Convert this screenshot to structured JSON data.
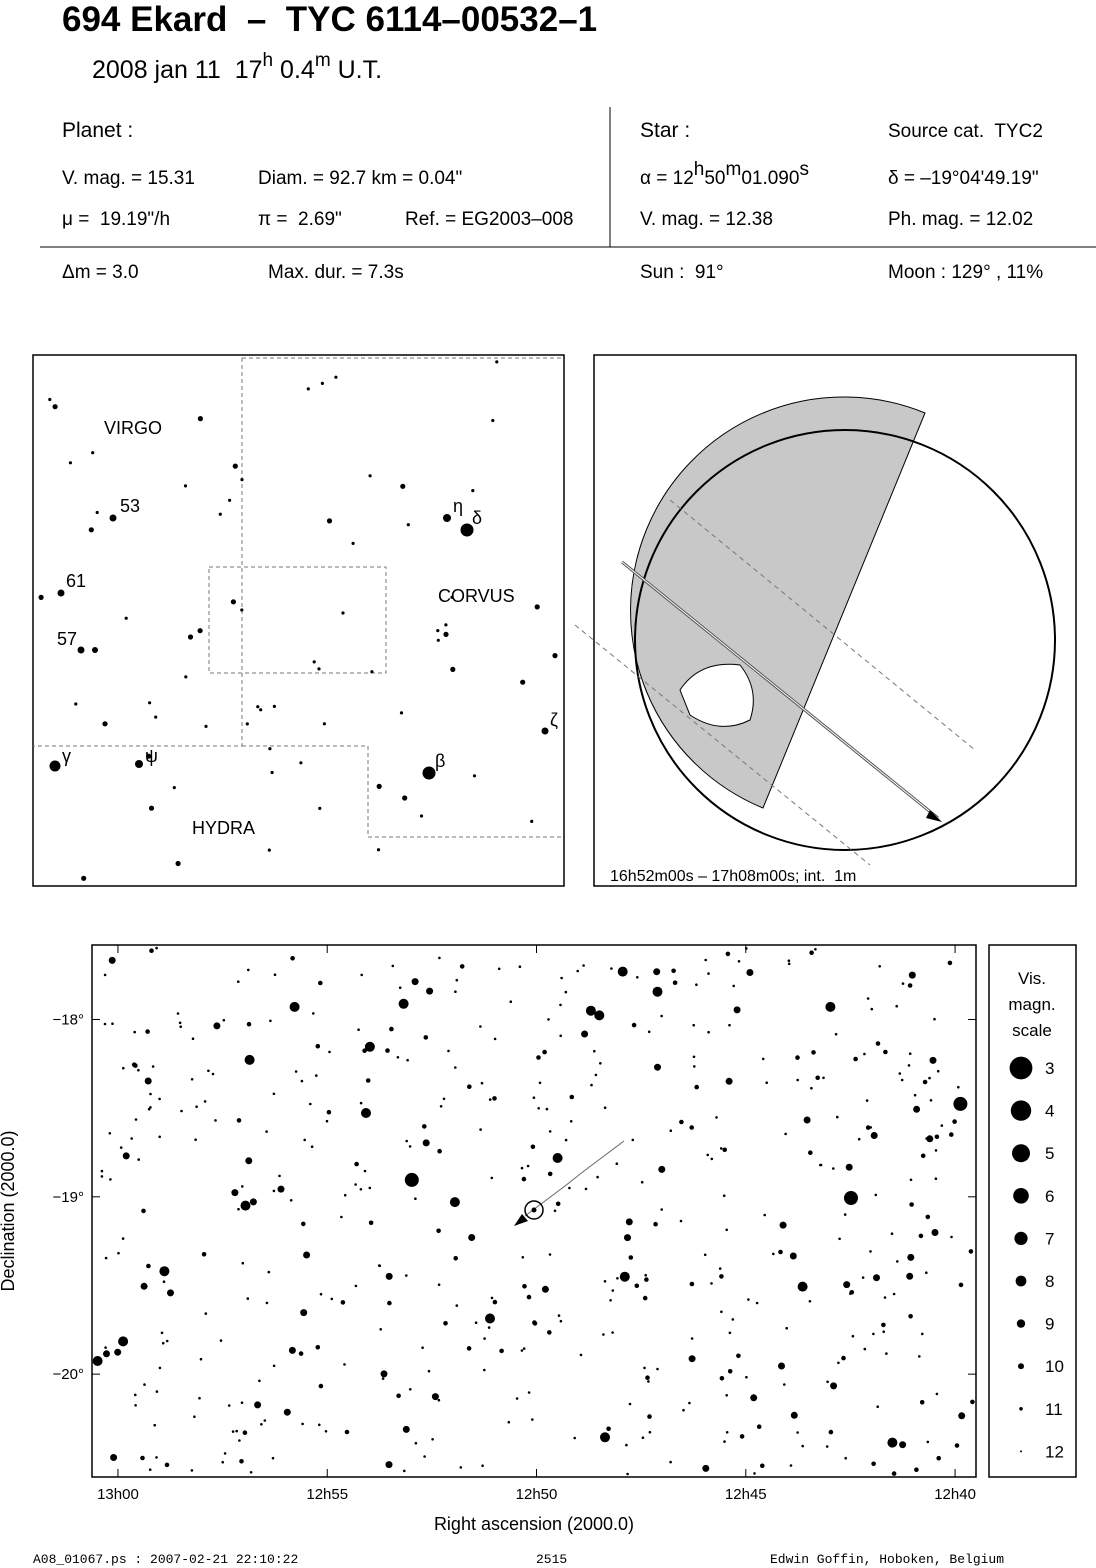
{
  "header": {
    "title": "694 Ekard  –  TYC 6114–00532–1",
    "date": {
      "day": "2008 jan 11  17",
      "h": "h",
      "min": " 0.4",
      "m": "m",
      "ut": " U.T."
    }
  },
  "planet": {
    "label": "Planet :",
    "vmag": "V. mag. = 15.31",
    "diam": "Diam. = 92.7 km = 0.04\"",
    "mu": "μ =  19.19\"/h",
    "pi": "π =  2.69\"",
    "ref": "Ref. = EG2003–008"
  },
  "star": {
    "label": "Star :",
    "source": "Source cat.  TYC2",
    "ra": {
      "pre": "α = 12",
      "h": "h",
      "min": "50",
      "m": "m",
      "sec": "01.090",
      "s": "s"
    },
    "dec": "δ = –19°04'49.19\"",
    "vmag": "V. mag. = 12.38",
    "phmag": "Ph. mag. = 12.02"
  },
  "event": {
    "dm": "Δm = 3.0",
    "maxdur": "Max. dur. = 7.3s",
    "sun": "Sun :  91°",
    "moon": "Moon : 129° , 11%"
  },
  "overview_map": {
    "constellations": [
      "VIRGO",
      "CORVUS",
      "HYDRA"
    ],
    "star_labels": [
      "53",
      "61",
      "57",
      "η",
      "δ",
      "γ",
      "ψ",
      "ζ",
      "β"
    ]
  },
  "globe": {
    "caption": "16h52m00s – 17h08m00s; int.  1m"
  },
  "chart_data": {
    "type": "scatter",
    "xlabel": "Right ascension (2000.0)",
    "ylabel": "Declination (2000.0)",
    "xlim": [
      780.62,
      759.5
    ],
    "ylim": [
      -20.58,
      -17.58
    ],
    "xticks": [
      {
        "value": 780,
        "label": "13h00"
      },
      {
        "value": 775,
        "label": "12h55"
      },
      {
        "value": 770,
        "label": "12h50"
      },
      {
        "value": 765,
        "label": "12h45"
      },
      {
        "value": 760,
        "label": "12h40"
      }
    ],
    "yticks": [
      {
        "value": -18,
        "label": "−18°"
      },
      {
        "value": -19,
        "label": "−19°"
      },
      {
        "value": -20,
        "label": "−20°"
      }
    ],
    "legend": {
      "title": [
        "Vis.",
        "magn.",
        "scale"
      ],
      "magnitudes": [
        3,
        4,
        5,
        6,
        7,
        8,
        9,
        10,
        11,
        12
      ]
    }
  },
  "footer": {
    "file": "A08_01067.ps : 2007-02-21 22:10:22",
    "page": "2515",
    "author": "Edwin Goffin, Hoboken, Belgium"
  }
}
